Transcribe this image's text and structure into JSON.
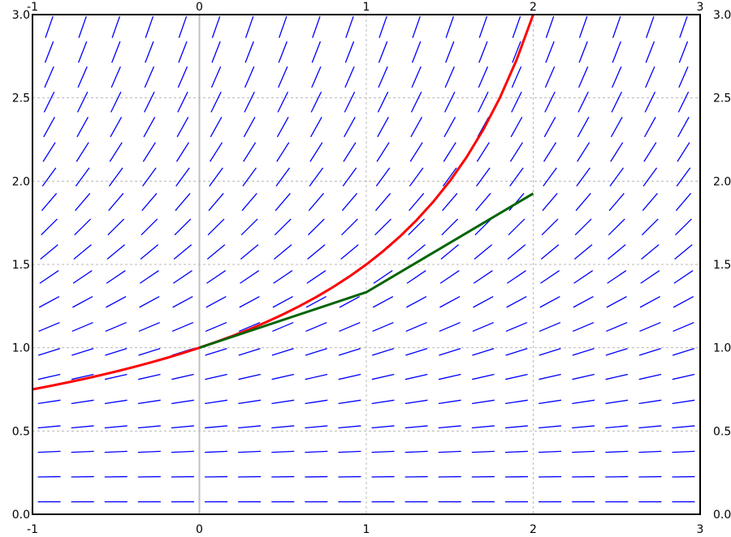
{
  "chart_data": {
    "type": "line",
    "xlim": [
      -1,
      3
    ],
    "ylim": [
      0,
      3
    ],
    "xticks": [
      -1,
      0,
      1,
      2,
      3
    ],
    "yticks": [
      {
        "value": 0,
        "label": "0.0"
      },
      {
        "value": 0.5,
        "label": "0.5"
      },
      {
        "value": 1,
        "label": "1.0"
      },
      {
        "value": 1.5,
        "label": "1.5"
      },
      {
        "value": 2,
        "label": "2.0"
      },
      {
        "value": 2.5,
        "label": "2.5"
      },
      {
        "value": 3,
        "label": "3.0"
      }
    ],
    "grid": true,
    "series": [
      {
        "color": "#ff0000",
        "x": [
          -1,
          -0.9,
          -0.8,
          -0.7,
          -0.6,
          -0.5,
          -0.4,
          -0.3,
          -0.2,
          -0.1,
          0,
          0.1,
          0.2,
          0.3,
          0.4,
          0.5,
          0.6,
          0.7,
          0.8,
          0.9,
          1,
          1.1,
          1.2,
          1.3,
          1.4,
          1.5,
          1.6,
          1.7,
          1.8,
          1.9,
          2
        ],
        "values": [
          0.75,
          0.7692,
          0.7895,
          0.8108,
          0.8333,
          0.8571,
          0.8824,
          0.9091,
          0.9375,
          0.9677,
          1,
          1.0345,
          1.0714,
          1.1111,
          1.1538,
          1.2,
          1.25,
          1.3043,
          1.3636,
          1.4286,
          1.5,
          1.5789,
          1.6667,
          1.7647,
          1.875,
          2,
          2.1429,
          2.3077,
          2.5,
          2.7273,
          3
        ]
      },
      {
        "color": "#006400",
        "x": [
          0,
          1,
          2
        ],
        "values": [
          1,
          1.3333,
          1.9259
        ]
      }
    ],
    "field": {
      "color": "#0000ff",
      "x": [
        -0.9,
        -0.7,
        -0.5,
        -0.3,
        -0.1,
        0.1,
        0.3,
        0.5,
        0.7,
        0.9,
        1.1,
        1.3,
        1.5,
        1.7,
        1.9,
        2.1,
        2.3,
        2.5,
        2.7,
        2.9
      ],
      "y": [
        0.075,
        0.225,
        0.375,
        0.525,
        0.675,
        0.825,
        0.975,
        1.125,
        1.275,
        1.425,
        1.575,
        1.725,
        1.875,
        2.025,
        2.175,
        2.325,
        2.475,
        2.625,
        2.775,
        2.925
      ],
      "slopes": [
        0.0019,
        0.0169,
        0.0469,
        0.0919,
        0.1519,
        0.2269,
        0.3169,
        0.4219,
        0.5419,
        0.6769,
        0.8269,
        0.9919,
        1.1719,
        1.3669,
        1.5769,
        1.8019,
        2.0419,
        2.2969,
        2.5669,
        2.8519
      ]
    }
  }
}
